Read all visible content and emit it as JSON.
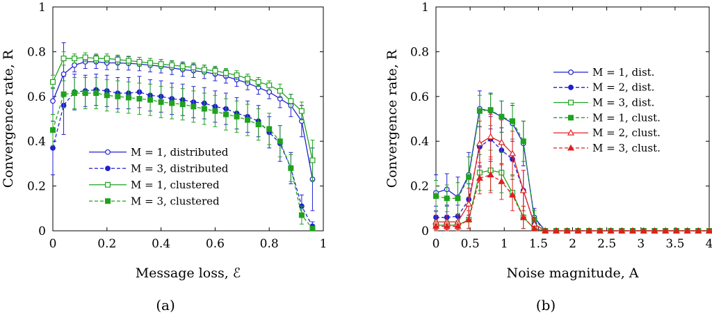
{
  "chart_data": [
    {
      "type": "line",
      "panel_label": "(a)",
      "xlabel": "Message loss, ℰ",
      "ylabel": "Convergence rate, R",
      "xlim": [
        0,
        1
      ],
      "ylim": [
        0,
        1
      ],
      "xticks": [
        "0",
        "0.2",
        "0.4",
        "0.6",
        "0.8",
        "1"
      ],
      "yticks": [
        "0",
        "0.2",
        "0.4",
        "0.6",
        "0.8",
        "1"
      ],
      "legend_position": "center-left",
      "x": [
        0,
        0.04,
        0.08,
        0.12,
        0.16,
        0.2,
        0.24,
        0.28,
        0.32,
        0.36,
        0.4,
        0.44,
        0.48,
        0.52,
        0.56,
        0.6,
        0.64,
        0.68,
        0.72,
        0.76,
        0.8,
        0.84,
        0.88,
        0.92,
        0.96
      ],
      "series": [
        {
          "name": "M = 1, distributed",
          "color": "#1f1fd1",
          "dashed": false,
          "marker": "circle-open",
          "values": [
            0.58,
            0.7,
            0.74,
            0.755,
            0.755,
            0.75,
            0.75,
            0.748,
            0.745,
            0.74,
            0.735,
            0.728,
            0.72,
            0.715,
            0.71,
            0.7,
            0.69,
            0.675,
            0.66,
            0.64,
            0.62,
            0.59,
            0.56,
            0.49,
            0.23
          ],
          "errors": [
            0.06,
            0.14,
            0.03,
            0.03,
            0.03,
            0.03,
            0.03,
            0.03,
            0.03,
            0.03,
            0.03,
            0.03,
            0.03,
            0.03,
            0.03,
            0.03,
            0.03,
            0.03,
            0.03,
            0.03,
            0.03,
            0.04,
            0.05,
            0.07,
            0.14
          ]
        },
        {
          "name": "M = 3, distributed",
          "color": "#1f1fd1",
          "dashed": true,
          "marker": "circle-filled",
          "values": [
            0.37,
            0.56,
            0.62,
            0.625,
            0.63,
            0.625,
            0.615,
            0.615,
            0.62,
            0.605,
            0.6,
            0.59,
            0.585,
            0.575,
            0.57,
            0.555,
            0.545,
            0.525,
            0.51,
            0.49,
            0.44,
            0.39,
            0.28,
            0.11,
            0.02
          ],
          "errors": [
            0.12,
            0.13,
            0.08,
            0.07,
            0.07,
            0.07,
            0.07,
            0.07,
            0.07,
            0.07,
            0.07,
            0.07,
            0.07,
            0.07,
            0.07,
            0.07,
            0.07,
            0.07,
            0.07,
            0.07,
            0.07,
            0.08,
            0.07,
            0.05,
            0.02
          ]
        },
        {
          "name": "M = 1, clustered",
          "color": "#1fa21f",
          "dashed": false,
          "marker": "square-open",
          "values": [
            0.665,
            0.77,
            0.77,
            0.775,
            0.77,
            0.77,
            0.765,
            0.76,
            0.755,
            0.75,
            0.745,
            0.74,
            0.735,
            0.73,
            0.72,
            0.715,
            0.705,
            0.695,
            0.68,
            0.665,
            0.65,
            0.625,
            0.58,
            0.535,
            0.315
          ],
          "errors": [
            0.03,
            0.03,
            0.02,
            0.02,
            0.02,
            0.02,
            0.02,
            0.02,
            0.02,
            0.02,
            0.02,
            0.02,
            0.02,
            0.02,
            0.02,
            0.02,
            0.02,
            0.02,
            0.02,
            0.02,
            0.02,
            0.03,
            0.03,
            0.04,
            0.09
          ]
        },
        {
          "name": "M = 3, clustered",
          "color": "#1fa21f",
          "dashed": true,
          "marker": "square-filled",
          "values": [
            0.45,
            0.61,
            0.615,
            0.615,
            0.615,
            0.605,
            0.6,
            0.595,
            0.59,
            0.585,
            0.575,
            0.57,
            0.565,
            0.555,
            0.545,
            0.535,
            0.52,
            0.51,
            0.495,
            0.475,
            0.455,
            0.4,
            0.28,
            0.07,
            0.01
          ],
          "errors": [
            0.07,
            0.06,
            0.07,
            0.07,
            0.07,
            0.07,
            0.07,
            0.07,
            0.07,
            0.07,
            0.07,
            0.07,
            0.07,
            0.07,
            0.07,
            0.07,
            0.07,
            0.07,
            0.07,
            0.07,
            0.07,
            0.07,
            0.06,
            0.04,
            0.01
          ]
        }
      ]
    },
    {
      "type": "line",
      "panel_label": "(b)",
      "xlabel": "Noise magnitude, A",
      "ylabel": "Convergence rate, R",
      "xlim": [
        0,
        4
      ],
      "ylim": [
        0,
        1
      ],
      "xticks": [
        "0",
        "0.5",
        "1",
        "1.5",
        "2",
        "2.5",
        "3",
        "3.5",
        "4"
      ],
      "yticks": [
        "0",
        "0.2",
        "0.4",
        "0.6",
        "0.8",
        "1"
      ],
      "legend_position": "top-right",
      "x": [
        0,
        0.16,
        0.32,
        0.48,
        0.64,
        0.8,
        0.96,
        1.12,
        1.28,
        1.44,
        1.6,
        1.76,
        1.92,
        2.08,
        2.24,
        2.4,
        2.56,
        2.72,
        2.88,
        3.04,
        3.2,
        3.36,
        3.52,
        3.68,
        3.84,
        4.0
      ],
      "series": [
        {
          "name": "M = 1, dist.",
          "color": "#1f1fd1",
          "dashed": false,
          "marker": "circle-open",
          "values": [
            0.17,
            0.185,
            0.15,
            0.25,
            0.545,
            0.535,
            0.51,
            0.48,
            0.39,
            0.06,
            0,
            0,
            0,
            0,
            0,
            0,
            0,
            0,
            0,
            0,
            0,
            0,
            0,
            0,
            0,
            0
          ],
          "errors": [
            0.08,
            0.07,
            0.09,
            0.1,
            0.08,
            0.08,
            0.07,
            0.08,
            0.1,
            0.04,
            0,
            0,
            0,
            0,
            0,
            0,
            0,
            0,
            0,
            0,
            0,
            0,
            0,
            0,
            0,
            0
          ]
        },
        {
          "name": "M = 2, dist.",
          "color": "#1f1fd1",
          "dashed": true,
          "marker": "circle-filled",
          "values": [
            0.06,
            0.06,
            0.065,
            0.14,
            0.375,
            0.41,
            0.36,
            0.32,
            0.18,
            0.03,
            0,
            0,
            0,
            0,
            0,
            0,
            0,
            0,
            0,
            0,
            0,
            0,
            0,
            0,
            0,
            0
          ],
          "errors": [
            0.05,
            0.05,
            0.05,
            0.07,
            0.09,
            0.1,
            0.1,
            0.09,
            0.09,
            0.03,
            0,
            0,
            0,
            0,
            0,
            0,
            0,
            0,
            0,
            0,
            0,
            0,
            0,
            0,
            0,
            0
          ]
        },
        {
          "name": "M = 3, dist.",
          "color": "#1fa21f",
          "dashed": false,
          "marker": "square-open",
          "values": [
            0.025,
            0.025,
            0.025,
            0.05,
            0.26,
            0.27,
            0.26,
            0.17,
            0.06,
            0.01,
            0,
            0,
            0,
            0,
            0,
            0,
            0,
            0,
            0,
            0,
            0,
            0,
            0,
            0,
            0,
            0
          ],
          "errors": [
            0.02,
            0.02,
            0.02,
            0.04,
            0.08,
            0.09,
            0.09,
            0.08,
            0.05,
            0.01,
            0,
            0,
            0,
            0,
            0,
            0,
            0,
            0,
            0,
            0,
            0,
            0,
            0,
            0,
            0,
            0
          ]
        },
        {
          "name": "M = 1, clust.",
          "color": "#1fa21f",
          "dashed": true,
          "marker": "square-filled",
          "values": [
            0.155,
            0.145,
            0.145,
            0.24,
            0.535,
            0.54,
            0.51,
            0.49,
            0.4,
            0.05,
            0,
            0,
            0,
            0,
            0,
            0,
            0,
            0,
            0,
            0,
            0,
            0,
            0,
            0,
            0,
            0
          ],
          "errors": [
            0.07,
            0.06,
            0.07,
            0.09,
            0.07,
            0.07,
            0.07,
            0.08,
            0.09,
            0.04,
            0,
            0,
            0,
            0,
            0,
            0,
            0,
            0,
            0,
            0,
            0,
            0,
            0,
            0,
            0,
            0
          ]
        },
        {
          "name": "M = 2, clust.",
          "color": "#e01f1f",
          "dashed": false,
          "marker": "triangle-open",
          "values": [
            0.04,
            0.04,
            0.04,
            0.12,
            0.39,
            0.42,
            0.395,
            0.345,
            0.18,
            0.03,
            0,
            0,
            0,
            0,
            0,
            0,
            0,
            0,
            0,
            0,
            0,
            0,
            0,
            0,
            0,
            0
          ],
          "errors": [
            0.03,
            0.03,
            0.03,
            0.07,
            0.1,
            0.1,
            0.1,
            0.1,
            0.09,
            0.03,
            0,
            0,
            0,
            0,
            0,
            0,
            0,
            0,
            0,
            0,
            0,
            0,
            0,
            0,
            0,
            0
          ]
        },
        {
          "name": "M = 3, clust.",
          "color": "#e01f1f",
          "dashed": true,
          "marker": "triangle-filled",
          "values": [
            0.02,
            0.02,
            0.02,
            0.05,
            0.235,
            0.25,
            0.22,
            0.16,
            0.06,
            0.01,
            0,
            0,
            0,
            0,
            0,
            0,
            0,
            0,
            0,
            0,
            0,
            0,
            0,
            0,
            0,
            0
          ],
          "errors": [
            0.02,
            0.02,
            0.02,
            0.04,
            0.07,
            0.08,
            0.08,
            0.07,
            0.05,
            0.01,
            0,
            0,
            0,
            0,
            0,
            0,
            0,
            0,
            0,
            0,
            0,
            0,
            0,
            0,
            0,
            0
          ]
        }
      ]
    }
  ]
}
